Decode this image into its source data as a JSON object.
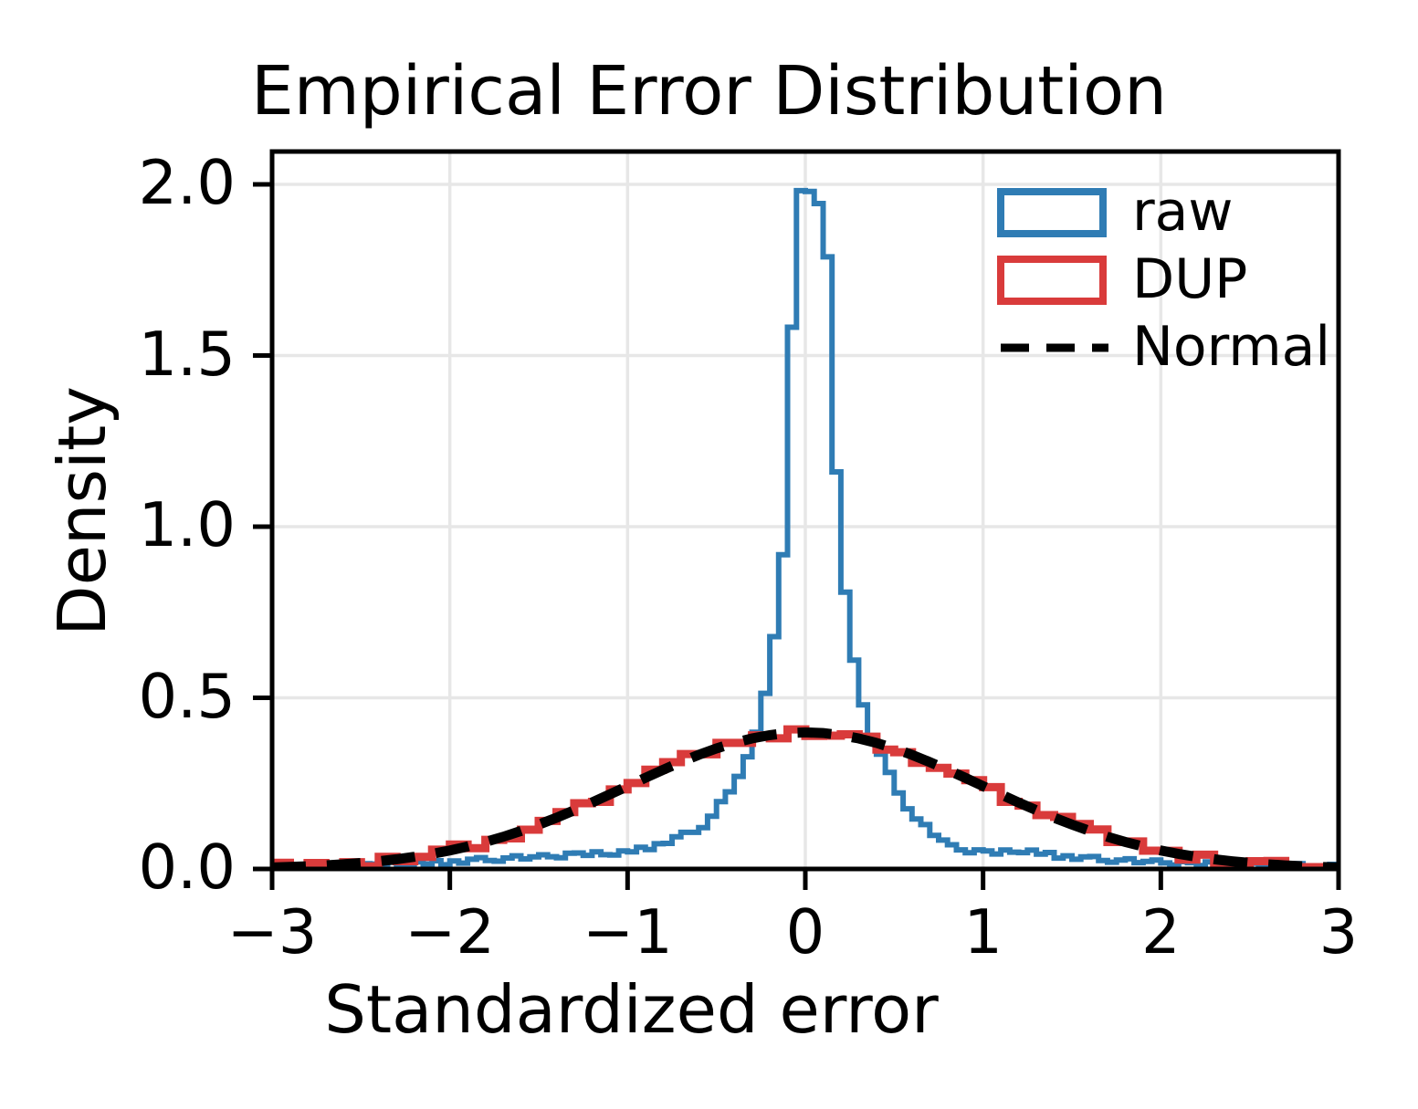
{
  "figure": {
    "title": "Empirical Error Distribution",
    "xlabel": "Standardized error",
    "ylabel": "Density"
  },
  "legend": {
    "position": "upper right",
    "frame": false,
    "items": [
      {
        "label": "raw",
        "type": "step-outline",
        "color": "#2f7cb4"
      },
      {
        "label": "DUP",
        "type": "step-outline",
        "color": "#d93b3b"
      },
      {
        "label": "Normal",
        "type": "dashed-line",
        "color": "#000000"
      }
    ]
  },
  "colors": {
    "background": "#ffffff",
    "grid": "#e7e7e7",
    "spine": "#000000",
    "text": "#000000",
    "raw": "#2f7cb4",
    "dup": "#d93b3b",
    "normal": "#000000"
  },
  "chart_data": {
    "type": "histogram",
    "title": "Empirical Error Distribution",
    "xlabel": "Standardized error",
    "ylabel": "Density",
    "xlim": [
      -3,
      3
    ],
    "ylim": [
      0,
      2.096
    ],
    "grid": true,
    "legend_position": "upper right",
    "xticks": [
      -3,
      -2,
      -1,
      0,
      1,
      2,
      3
    ],
    "xticklabels": [
      "−3",
      "−2",
      "−1",
      "0",
      "1",
      "2",
      "3"
    ],
    "yticks": [
      0,
      0.5,
      1.0,
      1.5,
      2.0
    ],
    "yticklabels": [
      "0.0",
      "0.5",
      "1.0",
      "1.5",
      "2.0"
    ],
    "gridlines_x": [
      -2,
      -1,
      0,
      1,
      2
    ],
    "gridlines_y": [
      0.5,
      1.0,
      1.5,
      2.0
    ],
    "noise": [
      0.32,
      -0.78,
      0.55,
      1.0,
      -0.42,
      -0.95,
      0.18,
      0.88,
      -0.6,
      0.05,
      0.75,
      -0.25,
      -0.9,
      0.62,
      0.4,
      -0.7,
      0.95,
      -0.12,
      -0.5,
      0.7,
      -0.35,
      0.85,
      -1.0
    ],
    "series": [
      {
        "name": "raw",
        "type": "step_histogram",
        "color": "#2f7cb4",
        "linewidth": 6,
        "bin_width": 0.05,
        "range": [
          -3,
          3
        ],
        "noise_scale": 0.007,
        "peak": 2.0,
        "profile": [
          [
            -3.0,
            0.006
          ],
          [
            -2.8,
            0.007
          ],
          [
            -2.6,
            0.009
          ],
          [
            -2.4,
            0.012
          ],
          [
            -2.2,
            0.015
          ],
          [
            -2.0,
            0.02
          ],
          [
            -1.8,
            0.027
          ],
          [
            -1.6,
            0.033
          ],
          [
            -1.4,
            0.038
          ],
          [
            -1.25,
            0.045
          ],
          [
            -1.1,
            0.042
          ],
          [
            -1.0,
            0.05
          ],
          [
            -0.9,
            0.06
          ],
          [
            -0.8,
            0.075
          ],
          [
            -0.7,
            0.095
          ],
          [
            -0.6,
            0.115
          ],
          [
            -0.52,
            0.155
          ],
          [
            -0.45,
            0.21
          ],
          [
            -0.38,
            0.265
          ],
          [
            -0.33,
            0.315
          ],
          [
            -0.28,
            0.39
          ],
          [
            -0.24,
            0.48
          ],
          [
            -0.2,
            0.585
          ],
          [
            -0.165,
            0.71
          ],
          [
            -0.14,
            0.83
          ],
          [
            -0.11,
            1.0
          ],
          [
            -0.09,
            1.25
          ],
          [
            -0.07,
            1.7
          ],
          [
            -0.05,
            1.95
          ],
          [
            0.0,
            2.0
          ],
          [
            0.05,
            1.96
          ],
          [
            0.09,
            1.94
          ],
          [
            0.12,
            1.84
          ],
          [
            0.15,
            1.5
          ],
          [
            0.19,
            0.96
          ],
          [
            0.23,
            0.78
          ],
          [
            0.26,
            0.665
          ],
          [
            0.31,
            0.505
          ],
          [
            0.35,
            0.43
          ],
          [
            0.4,
            0.36
          ],
          [
            0.47,
            0.28
          ],
          [
            0.54,
            0.21
          ],
          [
            0.62,
            0.147
          ],
          [
            0.72,
            0.104
          ],
          [
            0.84,
            0.06
          ],
          [
            0.95,
            0.052
          ],
          [
            1.1,
            0.048
          ],
          [
            1.25,
            0.052
          ],
          [
            1.4,
            0.04
          ],
          [
            1.6,
            0.03
          ],
          [
            1.8,
            0.024
          ],
          [
            2.0,
            0.02
          ],
          [
            2.2,
            0.015
          ],
          [
            2.5,
            0.011
          ],
          [
            2.8,
            0.008
          ],
          [
            3.0,
            0.007
          ]
        ]
      },
      {
        "name": "DUP",
        "type": "step_histogram",
        "color": "#d93b3b",
        "linewidth": 9,
        "bin_width": 0.1,
        "range": [
          -3,
          3
        ],
        "noise_scale": 0.013,
        "profile_from": "Normal"
      },
      {
        "name": "Normal",
        "type": "line",
        "color": "#000000",
        "linewidth": 11,
        "dash": [
          37,
          23
        ],
        "x0": -3,
        "dx": 0.1,
        "y": [
          0.0044,
          0.006,
          0.0079,
          0.0104,
          0.0136,
          0.0175,
          0.0224,
          0.0283,
          0.0355,
          0.044,
          0.054,
          0.0656,
          0.079,
          0.094,
          0.1109,
          0.1295,
          0.1497,
          0.1714,
          0.1942,
          0.2179,
          0.242,
          0.2661,
          0.2897,
          0.3123,
          0.3332,
          0.3521,
          0.3683,
          0.3814,
          0.391,
          0.397,
          0.3989,
          0.397,
          0.391,
          0.3814,
          0.3683,
          0.3521,
          0.3332,
          0.3123,
          0.2897,
          0.2661,
          0.242,
          0.2179,
          0.1942,
          0.1714,
          0.1497,
          0.1295,
          0.1109,
          0.094,
          0.079,
          0.0656,
          0.054,
          0.044,
          0.0355,
          0.0283,
          0.0224,
          0.0175,
          0.0136,
          0.0104,
          0.0079,
          0.006,
          0.0044
        ]
      }
    ]
  }
}
